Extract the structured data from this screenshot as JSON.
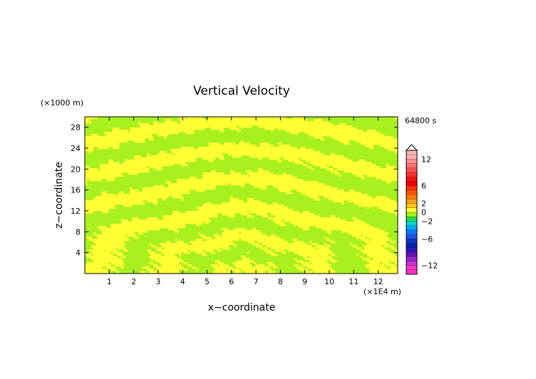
{
  "chart_data": {
    "type": "heatmap",
    "title": "Vertical Velocity",
    "xlabel": "x−coordinate",
    "ylabel": "z−coordinate",
    "x_unit": "(×1E4 m)",
    "y_unit": "(×1000 m)",
    "time_label": "64800 s",
    "x_ticks": [
      "1",
      "2",
      "3",
      "4",
      "5",
      "6",
      "7",
      "8",
      "9",
      "10",
      "11",
      "12"
    ],
    "y_ticks": [
      "4",
      "8",
      "12",
      "16",
      "20",
      "24",
      "28"
    ],
    "xlim": [
      0,
      12.8
    ],
    "ylim": [
      0,
      30
    ],
    "grid": false,
    "legend": "right",
    "field_description": "Alternating yellow (0 to 2) and green (-2 to 0) bands; tilted stripes radiating from lower centre, finer noisy cells near the bottom.",
    "colorbar": {
      "tick_labels": [
        "12",
        "6",
        "2",
        "0",
        "−2",
        "−6",
        "−12"
      ],
      "tick_values": [
        12,
        6,
        2,
        0,
        -2,
        -6,
        -12
      ],
      "levels": [
        {
          "lo": 12,
          "hi": 14,
          "color": "#ffb0b0"
        },
        {
          "lo": 11,
          "hi": 12,
          "color": "#ff9090"
        },
        {
          "lo": 10,
          "hi": 11,
          "color": "#ff7070"
        },
        {
          "lo": 9,
          "hi": 10,
          "color": "#ff5050"
        },
        {
          "lo": 8,
          "hi": 9,
          "color": "#ff3030"
        },
        {
          "lo": 7,
          "hi": 8,
          "color": "#ff1010"
        },
        {
          "lo": 6,
          "hi": 7,
          "color": "#f00000"
        },
        {
          "lo": 5,
          "hi": 6,
          "color": "#ff3300"
        },
        {
          "lo": 4,
          "hi": 5,
          "color": "#ff5500"
        },
        {
          "lo": 3,
          "hi": 4,
          "color": "#ff7a00"
        },
        {
          "lo": 2,
          "hi": 3,
          "color": "#ff9e20"
        },
        {
          "lo": 1,
          "hi": 2,
          "color": "#ffc800"
        },
        {
          "lo": 0,
          "hi": 1,
          "color": "#ffff33"
        },
        {
          "lo": -1,
          "hi": 0,
          "color": "#a8f01e"
        },
        {
          "lo": -2,
          "hi": -1,
          "color": "#22dd44"
        },
        {
          "lo": -3,
          "hi": -2,
          "color": "#00d8d0"
        },
        {
          "lo": -4,
          "hi": -3,
          "color": "#00aaff"
        },
        {
          "lo": -5,
          "hi": -4,
          "color": "#1177ff"
        },
        {
          "lo": -6,
          "hi": -5,
          "color": "#2255ee"
        },
        {
          "lo": -7,
          "hi": -6,
          "color": "#1133cc"
        },
        {
          "lo": -8,
          "hi": -7,
          "color": "#0022aa"
        },
        {
          "lo": -9,
          "hi": -8,
          "color": "#3311bb"
        },
        {
          "lo": -10,
          "hi": -9,
          "color": "#6611bb"
        },
        {
          "lo": -11,
          "hi": -10,
          "color": "#9922cc"
        },
        {
          "lo": -12,
          "hi": -11,
          "color": "#cc33dd"
        },
        {
          "lo": -14,
          "hi": -12,
          "color": "#ff33cc"
        }
      ]
    }
  }
}
